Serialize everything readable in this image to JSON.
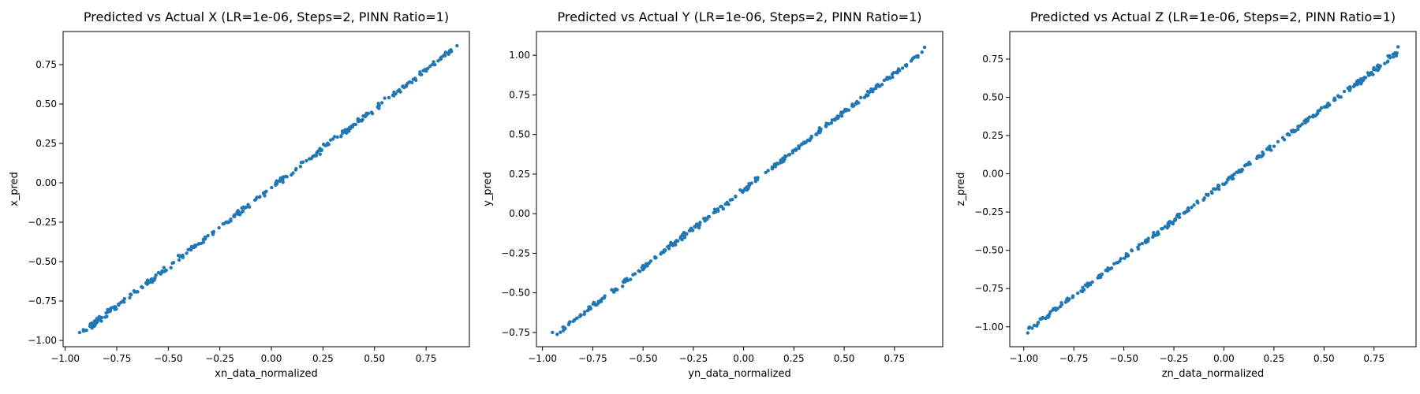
{
  "figure": {
    "point_color": "#1f77b4"
  },
  "chart_data": [
    {
      "type": "scatter",
      "title": "Predicted vs Actual X (LR=1e-06, Steps=2, PINN Ratio=1)",
      "xlabel": "xn_data_normalized",
      "ylabel": "x_pred",
      "xlim": [
        -1.01,
        0.96
      ],
      "ylim": [
        -1.04,
        0.96
      ],
      "grid": false,
      "legend": "none",
      "xticks": [
        -1.0,
        -0.75,
        -0.5,
        -0.25,
        0.0,
        0.25,
        0.5,
        0.75
      ],
      "xtick_labels": [
        "−1.00",
        "−0.75",
        "−0.50",
        "−0.25",
        "0.00",
        "0.25",
        "0.50",
        "0.75"
      ],
      "yticks": [
        -1.0,
        -0.75,
        -0.5,
        -0.25,
        0.0,
        0.25,
        0.5,
        0.75
      ],
      "ytick_labels": [
        "−1.00",
        "−0.75",
        "−0.50",
        "−0.25",
        "0.00",
        "0.25",
        "0.50",
        "0.75"
      ],
      "trend": {
        "slope": 1.0,
        "intercept": -0.032,
        "x_range": [
          -0.93,
          0.9
        ]
      },
      "series": [
        {
          "color": "#1f77b4",
          "points": [
            [
              -0.93,
              -0.95
            ],
            [
              -0.88,
              -0.91
            ],
            [
              -0.83,
              -0.86
            ],
            [
              -0.78,
              -0.81
            ],
            [
              -0.73,
              -0.76
            ],
            [
              -0.68,
              -0.71
            ],
            [
              -0.63,
              -0.66
            ],
            [
              -0.58,
              -0.61
            ],
            [
              -0.53,
              -0.56
            ],
            [
              -0.48,
              -0.51
            ],
            [
              -0.43,
              -0.46
            ],
            [
              -0.38,
              -0.41
            ],
            [
              -0.33,
              -0.36
            ],
            [
              -0.28,
              -0.31
            ],
            [
              -0.23,
              -0.26
            ],
            [
              -0.18,
              -0.21
            ],
            [
              -0.13,
              -0.16
            ],
            [
              -0.08,
              -0.11
            ],
            [
              -0.03,
              -0.06
            ],
            [
              0.02,
              -0.01
            ],
            [
              0.07,
              0.04
            ],
            [
              0.12,
              0.09
            ],
            [
              0.17,
              0.14
            ],
            [
              0.22,
              0.19
            ],
            [
              0.27,
              0.24
            ],
            [
              0.32,
              0.29
            ],
            [
              0.37,
              0.34
            ],
            [
              0.42,
              0.39
            ],
            [
              0.47,
              0.44
            ],
            [
              0.52,
              0.49
            ],
            [
              0.57,
              0.54
            ],
            [
              0.62,
              0.59
            ],
            [
              0.67,
              0.64
            ],
            [
              0.72,
              0.69
            ],
            [
              0.77,
              0.74
            ],
            [
              0.82,
              0.79
            ],
            [
              0.87,
              0.84
            ],
            [
              0.9,
              0.87
            ]
          ]
        }
      ]
    },
    {
      "type": "scatter",
      "title": "Predicted vs Actual Y (LR=1e-06, Steps=2, PINN Ratio=1)",
      "xlabel": "yn_data_normalized",
      "ylabel": "y_pred",
      "xlim": [
        -1.03,
        0.99
      ],
      "ylim": [
        -0.84,
        1.15
      ],
      "grid": false,
      "legend": "none",
      "xticks": [
        -1.0,
        -0.75,
        -0.5,
        -0.25,
        0.0,
        0.25,
        0.5,
        0.75
      ],
      "xtick_labels": [
        "−1.00",
        "−0.75",
        "−0.50",
        "−0.25",
        "0.00",
        "0.25",
        "0.50",
        "0.75"
      ],
      "yticks": [
        -0.75,
        -0.5,
        -0.25,
        0.0,
        0.25,
        0.5,
        0.75,
        1.0
      ],
      "ytick_labels": [
        "−0.75",
        "−0.50",
        "−0.25",
        "0.00",
        "0.25",
        "0.50",
        "0.75",
        "1.00"
      ],
      "trend": {
        "slope": 0.98,
        "intercept": 0.15,
        "x_range": [
          -0.93,
          0.9
        ]
      },
      "series": [
        {
          "color": "#1f77b4",
          "points": [
            [
              -0.95,
              -0.75
            ],
            [
              -0.89,
              -0.72
            ],
            [
              -0.84,
              -0.67
            ],
            [
              -0.79,
              -0.62
            ],
            [
              -0.74,
              -0.57
            ],
            [
              -0.69,
              -0.52
            ],
            [
              -0.64,
              -0.48
            ],
            [
              -0.59,
              -0.43
            ],
            [
              -0.54,
              -0.38
            ],
            [
              -0.49,
              -0.33
            ],
            [
              -0.44,
              -0.28
            ],
            [
              -0.39,
              -0.23
            ],
            [
              -0.34,
              -0.18
            ],
            [
              -0.29,
              -0.13
            ],
            [
              -0.24,
              -0.08
            ],
            [
              -0.19,
              -0.03
            ],
            [
              -0.14,
              0.01
            ],
            [
              -0.09,
              0.06
            ],
            [
              -0.04,
              0.11
            ],
            [
              0.01,
              0.16
            ],
            [
              0.06,
              0.21
            ],
            [
              0.11,
              0.26
            ],
            [
              0.16,
              0.31
            ],
            [
              0.21,
              0.36
            ],
            [
              0.26,
              0.4
            ],
            [
              0.31,
              0.45
            ],
            [
              0.36,
              0.5
            ],
            [
              0.41,
              0.55
            ],
            [
              0.46,
              0.6
            ],
            [
              0.51,
              0.65
            ],
            [
              0.56,
              0.7
            ],
            [
              0.61,
              0.75
            ],
            [
              0.66,
              0.8
            ],
            [
              0.71,
              0.85
            ],
            [
              0.76,
              0.89
            ],
            [
              0.81,
              0.94
            ],
            [
              0.86,
              0.99
            ],
            [
              0.9,
              1.05
            ]
          ]
        }
      ]
    },
    {
      "type": "scatter",
      "title": "Predicted vs Actual Z (LR=1e-06, Steps=2, PINN Ratio=1)",
      "xlabel": "zn_data_normalized",
      "ylabel": "z_pred",
      "xlim": [
        -1.07,
        0.96
      ],
      "ylim": [
        -1.13,
        0.93
      ],
      "grid": false,
      "legend": "none",
      "xticks": [
        -1.0,
        -0.75,
        -0.5,
        -0.25,
        0.0,
        0.25,
        0.5,
        0.75
      ],
      "xtick_labels": [
        "−1.00",
        "−0.75",
        "−0.50",
        "−0.25",
        "0.00",
        "0.25",
        "0.50",
        "0.75"
      ],
      "yticks": [
        -1.0,
        -0.75,
        -0.5,
        -0.25,
        0.0,
        0.25,
        0.5,
        0.75
      ],
      "ytick_labels": [
        "−1.00",
        "−0.75",
        "−0.50",
        "−0.25",
        "0.00",
        "0.25",
        "0.50",
        "0.75"
      ],
      "trend": {
        "slope": 0.98,
        "intercept": -0.06,
        "x_range": [
          -0.98,
          0.87
        ]
      },
      "series": [
        {
          "color": "#1f77b4",
          "points": [
            [
              -0.98,
              -1.04
            ],
            [
              -0.93,
              -0.98
            ],
            [
              -0.88,
              -0.93
            ],
            [
              -0.83,
              -0.88
            ],
            [
              -0.78,
              -0.83
            ],
            [
              -0.73,
              -0.78
            ],
            [
              -0.68,
              -0.73
            ],
            [
              -0.63,
              -0.68
            ],
            [
              -0.58,
              -0.63
            ],
            [
              -0.53,
              -0.58
            ],
            [
              -0.48,
              -0.53
            ],
            [
              -0.43,
              -0.48
            ],
            [
              -0.38,
              -0.43
            ],
            [
              -0.33,
              -0.38
            ],
            [
              -0.28,
              -0.33
            ],
            [
              -0.23,
              -0.28
            ],
            [
              -0.18,
              -0.23
            ],
            [
              -0.13,
              -0.19
            ],
            [
              -0.08,
              -0.14
            ],
            [
              -0.03,
              -0.09
            ],
            [
              0.02,
              -0.04
            ],
            [
              0.07,
              0.01
            ],
            [
              0.12,
              0.06
            ],
            [
              0.17,
              0.11
            ],
            [
              0.22,
              0.16
            ],
            [
              0.27,
              0.21
            ],
            [
              0.32,
              0.26
            ],
            [
              0.37,
              0.31
            ],
            [
              0.42,
              0.36
            ],
            [
              0.47,
              0.41
            ],
            [
              0.52,
              0.46
            ],
            [
              0.57,
              0.51
            ],
            [
              0.62,
              0.56
            ],
            [
              0.67,
              0.61
            ],
            [
              0.72,
              0.66
            ],
            [
              0.77,
              0.71
            ],
            [
              0.82,
              0.77
            ],
            [
              0.87,
              0.83
            ]
          ]
        }
      ]
    }
  ]
}
